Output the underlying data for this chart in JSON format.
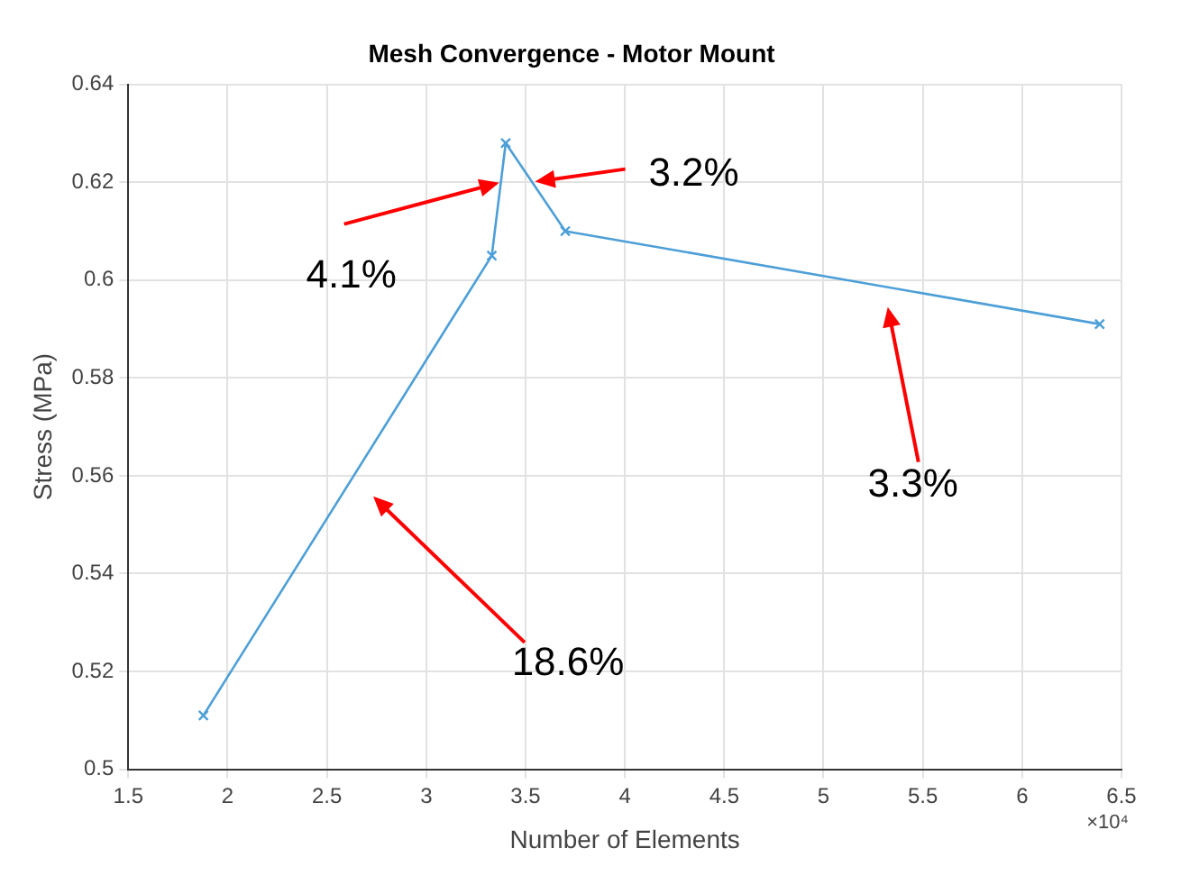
{
  "chart_data": {
    "type": "line",
    "title": "Mesh Convergence - Motor Mount",
    "xlabel": "Number of Elements",
    "ylabel": "Stress (MPa)",
    "x": [
      1.878,
      3.33,
      3.4,
      3.7,
      6.39
    ],
    "series": [
      {
        "color": "#4d9fd8",
        "values": [
          0.511,
          0.605,
          0.628,
          0.61,
          0.591
        ]
      }
    ],
    "xlim": [
      1.5,
      6.5
    ],
    "xticks": [
      1.5,
      2,
      2.5,
      3,
      3.5,
      4,
      4.5,
      5,
      5.5,
      6,
      6.5
    ],
    "ylim": [
      0.5,
      0.64
    ],
    "yticks": [
      0.5,
      0.52,
      0.54,
      0.56,
      0.58,
      0.6,
      0.62,
      0.64
    ],
    "grid": true,
    "legend": false,
    "marker": "cross",
    "line_style": "solid",
    "annotations": [
      "×10⁴",
      {
        "text": "4.1%",
        "x": 3.376,
        "y": 0.62
      },
      {
        "text": "3.2%",
        "x": 3.53,
        "y": 0.62
      },
      "3.3%",
      "18.6%"
    ]
  }
}
